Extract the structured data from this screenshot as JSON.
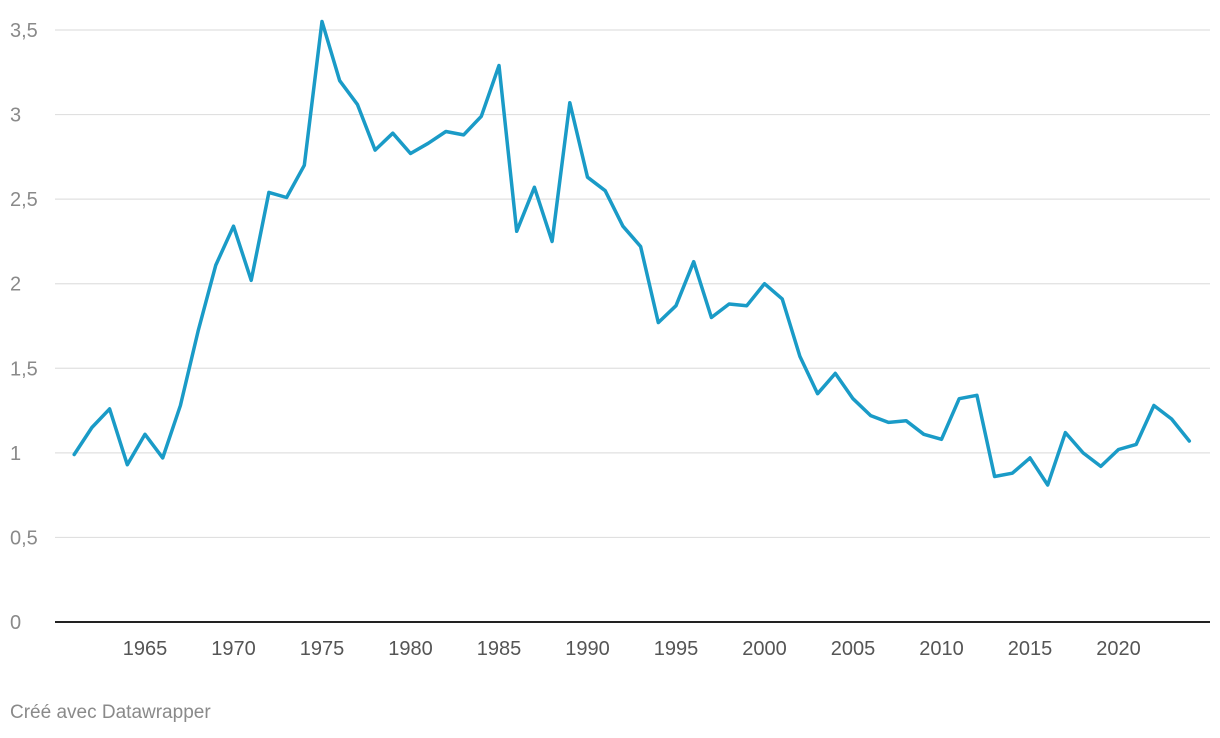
{
  "credit": "Créé avec Datawrapper",
  "colors": {
    "line": "#1a9bc7",
    "grid": "#e0e0e0",
    "baseline": "#222222",
    "tick_text": "#8a8a8a"
  },
  "chart_data": {
    "type": "line",
    "title": "",
    "xlabel": "",
    "ylabel": "",
    "grid": true,
    "xlim": [
      1960,
      2024
    ],
    "ylim": [
      0,
      3.5
    ],
    "y_ticks": [
      0,
      0.5,
      1,
      1.5,
      2,
      2.5,
      3,
      3.5
    ],
    "y_tick_labels": [
      "0",
      "0,5",
      "1",
      "1,5",
      "2",
      "2,5",
      "3",
      "3,5"
    ],
    "x_ticks": [
      1965,
      1970,
      1975,
      1980,
      1985,
      1990,
      1995,
      2000,
      2005,
      2010,
      2015,
      2020
    ],
    "x_tick_labels": [
      "1965",
      "1970",
      "1975",
      "1980",
      "1985",
      "1990",
      "1995",
      "2000",
      "2005",
      "2010",
      "2015",
      "2020"
    ],
    "series": [
      {
        "x": [
          1961,
          1962,
          1963,
          1964,
          1965,
          1966,
          1967,
          1968,
          1969,
          1970,
          1971,
          1972,
          1973,
          1974,
          1975,
          1976,
          1977,
          1978,
          1979,
          1980,
          1981,
          1982,
          1983,
          1984,
          1985,
          1986,
          1987,
          1988,
          1989,
          1990,
          1991,
          1992,
          1993,
          1994,
          1995,
          1996,
          1997,
          1998,
          1999,
          2000,
          2001,
          2002,
          2003,
          2004,
          2005,
          2006,
          2007,
          2008,
          2009,
          2010,
          2011,
          2012,
          2013,
          2014,
          2015,
          2016,
          2017,
          2018,
          2019,
          2020,
          2021,
          2022,
          2023,
          2024
        ],
        "values": [
          0.99,
          1.15,
          1.26,
          0.93,
          1.11,
          0.97,
          1.28,
          1.72,
          2.11,
          2.34,
          2.02,
          2.54,
          2.51,
          2.7,
          3.55,
          3.2,
          3.06,
          2.79,
          2.89,
          2.77,
          2.83,
          2.9,
          2.88,
          2.99,
          3.29,
          2.31,
          2.57,
          2.25,
          3.07,
          2.63,
          2.55,
          2.34,
          2.22,
          1.77,
          1.87,
          2.13,
          1.8,
          1.88,
          1.87,
          2.0,
          1.91,
          1.57,
          1.35,
          1.47,
          1.32,
          1.22,
          1.18,
          1.19,
          1.11,
          1.08,
          1.32,
          1.34,
          0.86,
          0.88,
          0.97,
          0.81,
          1.12,
          1.0,
          0.92,
          1.02,
          1.05,
          1.28,
          1.2,
          1.07
        ]
      }
    ]
  }
}
